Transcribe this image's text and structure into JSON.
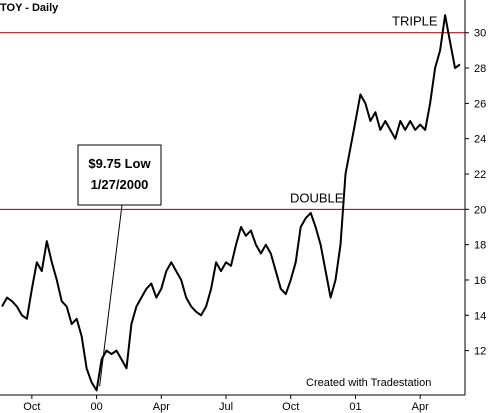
{
  "chart_data": {
    "type": "line",
    "title": "TOY - Daily",
    "footer": "Created with Tradestation",
    "annotation": [
      "$9.75 Low",
      "1/27/2000"
    ],
    "reference_lines": [
      {
        "value": 20,
        "label": "DOUBLE"
      },
      {
        "value": 30,
        "label": "TRIPLE"
      }
    ],
    "reference_color": "#8b0000",
    "color": "#000000",
    "values": [
      14.5,
      15,
      14.8,
      14.5,
      14,
      13.8,
      15.5,
      17,
      16.5,
      18.2,
      17,
      16,
      14.8,
      14.5,
      13.5,
      13.8,
      12.8,
      11,
      10.2,
      9.75,
      11.5,
      12,
      11.8,
      12,
      11.5,
      11,
      13.5,
      14.5,
      15,
      15.5,
      15.8,
      15,
      15.5,
      16.5,
      17,
      16.5,
      16,
      15,
      14.5,
      14.2,
      14,
      14.5,
      15.5,
      17,
      16.5,
      17,
      16.8,
      18,
      19,
      18.5,
      18.8,
      18,
      17.5,
      18,
      17.5,
      16.5,
      15.5,
      15.2,
      16,
      17,
      19,
      19.5,
      19.8,
      19,
      18,
      16.5,
      15,
      16,
      18,
      22,
      23.5,
      25,
      26.5,
      26,
      25,
      25.5,
      24.5,
      25,
      24.5,
      24,
      25,
      24.5,
      25,
      24.5,
      24.8,
      24.5,
      26,
      28,
      29,
      31,
      29.5,
      28,
      28.2
    ],
    "xlim": [
      0,
      92
    ],
    "xticks": [
      {
        "value": 6,
        "label": "Oct"
      },
      {
        "value": 19,
        "label": "00"
      },
      {
        "value": 32,
        "label": "Apr"
      },
      {
        "value": 45,
        "label": "Jul"
      },
      {
        "value": 58,
        "label": "Oct"
      },
      {
        "value": 71,
        "label": "01"
      },
      {
        "value": 84,
        "label": "Apr"
      }
    ],
    "ylim": [
      9.6,
      31.4
    ],
    "yticks": [
      12,
      14,
      16,
      18,
      20,
      22,
      24,
      26,
      28,
      30
    ]
  }
}
